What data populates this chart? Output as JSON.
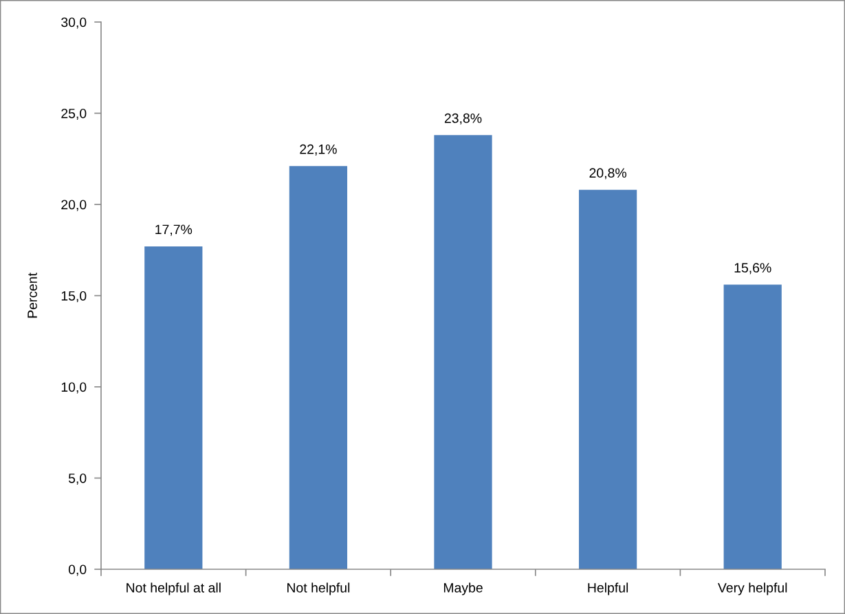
{
  "chart_data": {
    "type": "bar",
    "ylabel": "Percent",
    "categories": [
      "Not helpful at all",
      "Not helpful",
      "Maybe",
      "Helpful",
      "Very helpful"
    ],
    "values": [
      17.7,
      22.1,
      23.8,
      20.8,
      15.6
    ],
    "color": "#4f81bd",
    "value_labels": [
      "17,7%",
      "22,1%",
      "23,8%",
      "20,8%",
      "15,6%"
    ],
    "ylim": [
      0,
      30
    ],
    "yticks": [
      {
        "value": 0,
        "label": "0,0"
      },
      {
        "value": 5,
        "label": "5,0"
      },
      {
        "value": 10,
        "label": "10,0"
      },
      {
        "value": 15,
        "label": "15,0"
      },
      {
        "value": 20,
        "label": "20,0"
      },
      {
        "value": 25,
        "label": "25,0"
      },
      {
        "value": 30,
        "label": "30,0"
      }
    ]
  }
}
